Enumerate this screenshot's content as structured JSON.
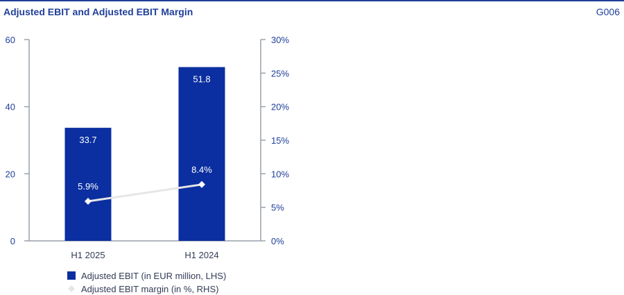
{
  "header": {
    "title": "Adjusted EBIT and Adjusted EBIT Margin",
    "code": "G006"
  },
  "chart_data": {
    "type": "bar",
    "categories": [
      "H1 2025",
      "H1 2024"
    ],
    "series": [
      {
        "name": "Adjusted EBIT (in EUR million, LHS)",
        "type": "bar",
        "axis": "left",
        "values": [
          33.7,
          51.8
        ],
        "labels": [
          "33.7",
          "51.8"
        ],
        "color": "#0b2fa0"
      },
      {
        "name": "Adjusted EBIT margin (in %, RHS)",
        "type": "line",
        "axis": "right",
        "values": [
          5.9,
          8.4
        ],
        "labels": [
          "5.9%",
          "8.4%"
        ],
        "color": "#e6e6e6"
      }
    ],
    "y_left": {
      "ylim": [
        0,
        60
      ],
      "ticks": [
        "0",
        "20",
        "40",
        "60"
      ],
      "tick_values": [
        0,
        20,
        40,
        60
      ]
    },
    "y_right": {
      "ylim": [
        0,
        30
      ],
      "ticks": [
        "0%",
        "5%",
        "10%",
        "15%",
        "20%",
        "25%",
        "30%"
      ],
      "tick_values": [
        0,
        5,
        10,
        15,
        20,
        25,
        30
      ]
    },
    "legend_position": "bottom-left",
    "grid": false
  }
}
